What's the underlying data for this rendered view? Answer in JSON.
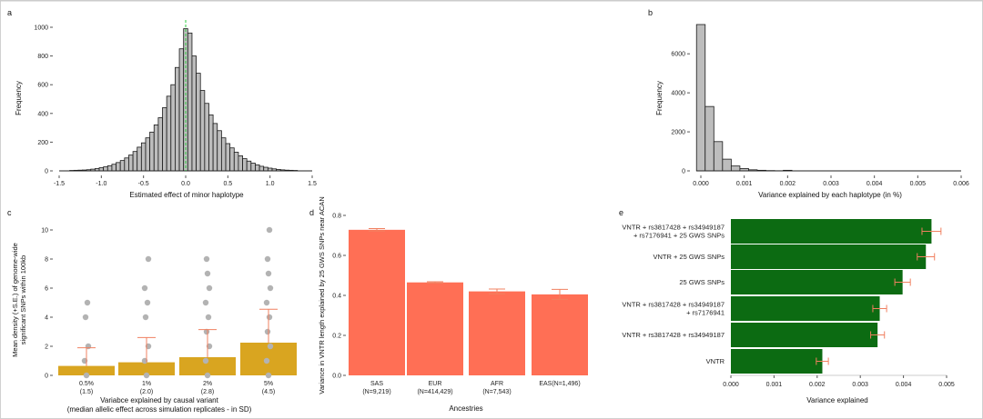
{
  "colors": {
    "hist_fill": "#bdbdbd",
    "line_green": "#2ecc40",
    "bar_gold": "#d9a520",
    "bar_salmon": "#ff6f55",
    "bar_green": "#0c6b12",
    "error_red": "#f08060",
    "dots": "#b3b3b3",
    "axis": "#222222",
    "border": "#d0d0d0"
  },
  "chart_data": [
    {
      "id": "a",
      "type": "bar",
      "panel_label": "a",
      "title": "",
      "xlabel": "Estimated effect of minor haplotype",
      "ylabel": "Frequency",
      "xlim": [
        -1.5,
        1.5
      ],
      "ylim": [
        0,
        1000
      ],
      "xticks": [
        "-1.5",
        "-1.0",
        "-0.5",
        "0.0",
        "0.5",
        "1.0",
        "1.5"
      ],
      "yticks": [
        "0",
        "200",
        "400",
        "600",
        "800",
        "1000"
      ],
      "bin_width": 0.05,
      "reference_line_x": 0.0,
      "bins": [
        {
          "x": -1.35,
          "count": 3
        },
        {
          "x": -1.3,
          "count": 4
        },
        {
          "x": -1.25,
          "count": 5
        },
        {
          "x": -1.2,
          "count": 6
        },
        {
          "x": -1.15,
          "count": 8
        },
        {
          "x": -1.1,
          "count": 12
        },
        {
          "x": -1.05,
          "count": 16
        },
        {
          "x": -1.0,
          "count": 22
        },
        {
          "x": -0.95,
          "count": 28
        },
        {
          "x": -0.9,
          "count": 36
        },
        {
          "x": -0.85,
          "count": 46
        },
        {
          "x": -0.8,
          "count": 58
        },
        {
          "x": -0.75,
          "count": 72
        },
        {
          "x": -0.7,
          "count": 90
        },
        {
          "x": -0.65,
          "count": 110
        },
        {
          "x": -0.6,
          "count": 135
        },
        {
          "x": -0.55,
          "count": 165
        },
        {
          "x": -0.5,
          "count": 195
        },
        {
          "x": -0.45,
          "count": 230
        },
        {
          "x": -0.4,
          "count": 270
        },
        {
          "x": -0.35,
          "count": 320
        },
        {
          "x": -0.3,
          "count": 370
        },
        {
          "x": -0.25,
          "count": 440
        },
        {
          "x": -0.2,
          "count": 520
        },
        {
          "x": -0.15,
          "count": 600
        },
        {
          "x": -0.1,
          "count": 720
        },
        {
          "x": -0.05,
          "count": 850
        },
        {
          "x": 0.0,
          "count": 990
        },
        {
          "x": 0.05,
          "count": 960
        },
        {
          "x": 0.1,
          "count": 800
        },
        {
          "x": 0.15,
          "count": 680
        },
        {
          "x": 0.2,
          "count": 560
        },
        {
          "x": 0.25,
          "count": 470
        },
        {
          "x": 0.3,
          "count": 390
        },
        {
          "x": 0.35,
          "count": 330
        },
        {
          "x": 0.4,
          "count": 280
        },
        {
          "x": 0.45,
          "count": 230
        },
        {
          "x": 0.5,
          "count": 190
        },
        {
          "x": 0.55,
          "count": 160
        },
        {
          "x": 0.6,
          "count": 130
        },
        {
          "x": 0.65,
          "count": 105
        },
        {
          "x": 0.7,
          "count": 85
        },
        {
          "x": 0.75,
          "count": 68
        },
        {
          "x": 0.8,
          "count": 54
        },
        {
          "x": 0.85,
          "count": 42
        },
        {
          "x": 0.9,
          "count": 32
        },
        {
          "x": 0.95,
          "count": 25
        },
        {
          "x": 1.0,
          "count": 19
        },
        {
          "x": 1.05,
          "count": 14
        },
        {
          "x": 1.1,
          "count": 10
        },
        {
          "x": 1.15,
          "count": 7
        },
        {
          "x": 1.2,
          "count": 5
        },
        {
          "x": 1.25,
          "count": 4
        },
        {
          "x": 1.3,
          "count": 3
        }
      ]
    },
    {
      "id": "b",
      "type": "bar",
      "panel_label": "b",
      "title": "",
      "xlabel": "Variance explained by each haplotype (in %)",
      "ylabel": "Frequency",
      "xlim": [
        -0.0002,
        0.006
      ],
      "ylim": [
        0,
        7500
      ],
      "xticks": [
        "0.000",
        "0.001",
        "0.002",
        "0.003",
        "0.004",
        "0.005",
        "0.006"
      ],
      "yticks": [
        "0",
        "2000",
        "4000",
        "6000"
      ],
      "bin_width": 0.0002,
      "bins": [
        {
          "x": 0.0,
          "count": 7500
        },
        {
          "x": 0.0002,
          "count": 3300
        },
        {
          "x": 0.0004,
          "count": 1500
        },
        {
          "x": 0.0006,
          "count": 600
        },
        {
          "x": 0.0008,
          "count": 250
        },
        {
          "x": 0.001,
          "count": 120
        },
        {
          "x": 0.0012,
          "count": 55
        },
        {
          "x": 0.0014,
          "count": 30
        },
        {
          "x": 0.0016,
          "count": 15
        },
        {
          "x": 0.0018,
          "count": 8
        },
        {
          "x": 0.002,
          "count": 30
        },
        {
          "x": 0.0022,
          "count": 4
        }
      ]
    },
    {
      "id": "c",
      "type": "bar",
      "panel_label": "c",
      "title": "",
      "xlabel_lines": [
        "Variabce explained by causal variant",
        "(median allelic effect across simulation replicates - in SD)"
      ],
      "ylabel_lines": [
        "Mean density (+S.E.) of genome-wide",
        "significant SNPs within 100kb"
      ],
      "ylim": [
        0,
        10
      ],
      "yticks": [
        "0",
        "2",
        "4",
        "6",
        "8",
        "10"
      ],
      "categories": [
        {
          "l1": "0.5%",
          "l2": "(1.5)"
        },
        {
          "l1": "1%",
          "l2": "(2.0)"
        },
        {
          "l1": "2%",
          "l2": "(2.8)"
        },
        {
          "l1": "5%",
          "l2": "(4.5)"
        }
      ],
      "values": [
        0.65,
        0.9,
        1.25,
        2.25
      ],
      "error_upper": [
        1.9,
        2.6,
        3.15,
        4.55
      ],
      "points": [
        [
          0,
          1,
          2,
          4,
          5
        ],
        [
          0,
          1,
          2,
          4,
          5,
          6,
          8
        ],
        [
          0,
          1,
          2,
          3,
          4,
          5,
          6,
          7,
          8
        ],
        [
          0,
          1,
          2,
          3,
          4,
          5,
          6,
          7,
          8,
          10
        ]
      ]
    },
    {
      "id": "d",
      "type": "bar",
      "panel_label": "d",
      "title": "",
      "xlabel": "Ancestries",
      "ylabel": "Variance in VNTR length explained by 25 GWS SNPs near ACAN",
      "ylim": [
        0,
        0.8
      ],
      "yticks": [
        "0.0",
        "0.2",
        "0.4",
        "0.6",
        "0.8"
      ],
      "categories": [
        {
          "l1": "SAS",
          "l2": "(N=9,219)"
        },
        {
          "l1": "EUR",
          "l2": "(N=414,429)"
        },
        {
          "l1": "AFR",
          "l2": "(N=7,543)"
        },
        {
          "l1": "EAS(N=1,496)",
          "l2": ""
        }
      ],
      "values": [
        0.728,
        0.465,
        0.42,
        0.405
      ],
      "errors": [
        0.006,
        0.003,
        0.012,
        0.025
      ]
    },
    {
      "id": "e",
      "type": "bar",
      "orientation": "horizontal",
      "panel_label": "e",
      "title": "",
      "xlabel": "Variance explained",
      "xlim": [
        0,
        0.005
      ],
      "xticks": [
        "0.000",
        "0.001",
        "0.002",
        "0.003",
        "0.004",
        "0.005"
      ],
      "categories": [
        [
          "VNTR + rs3817428 + rs34949187",
          "+ rs7176941 + 25 GWS SNPs"
        ],
        [
          "VNTR + 25 GWS SNPs"
        ],
        [
          "25 GWS SNPs"
        ],
        [
          "VNTR + rs3817428 + rs34949187",
          "+ rs7176941"
        ],
        [
          "VNTR + rs3817428 + rs34949187"
        ],
        [
          "VNTR"
        ]
      ],
      "values": [
        0.00465,
        0.00452,
        0.00398,
        0.00345,
        0.0034,
        0.00212
      ],
      "errors": [
        0.00022,
        0.0002,
        0.00018,
        0.00016,
        0.00016,
        0.00014
      ]
    }
  ]
}
